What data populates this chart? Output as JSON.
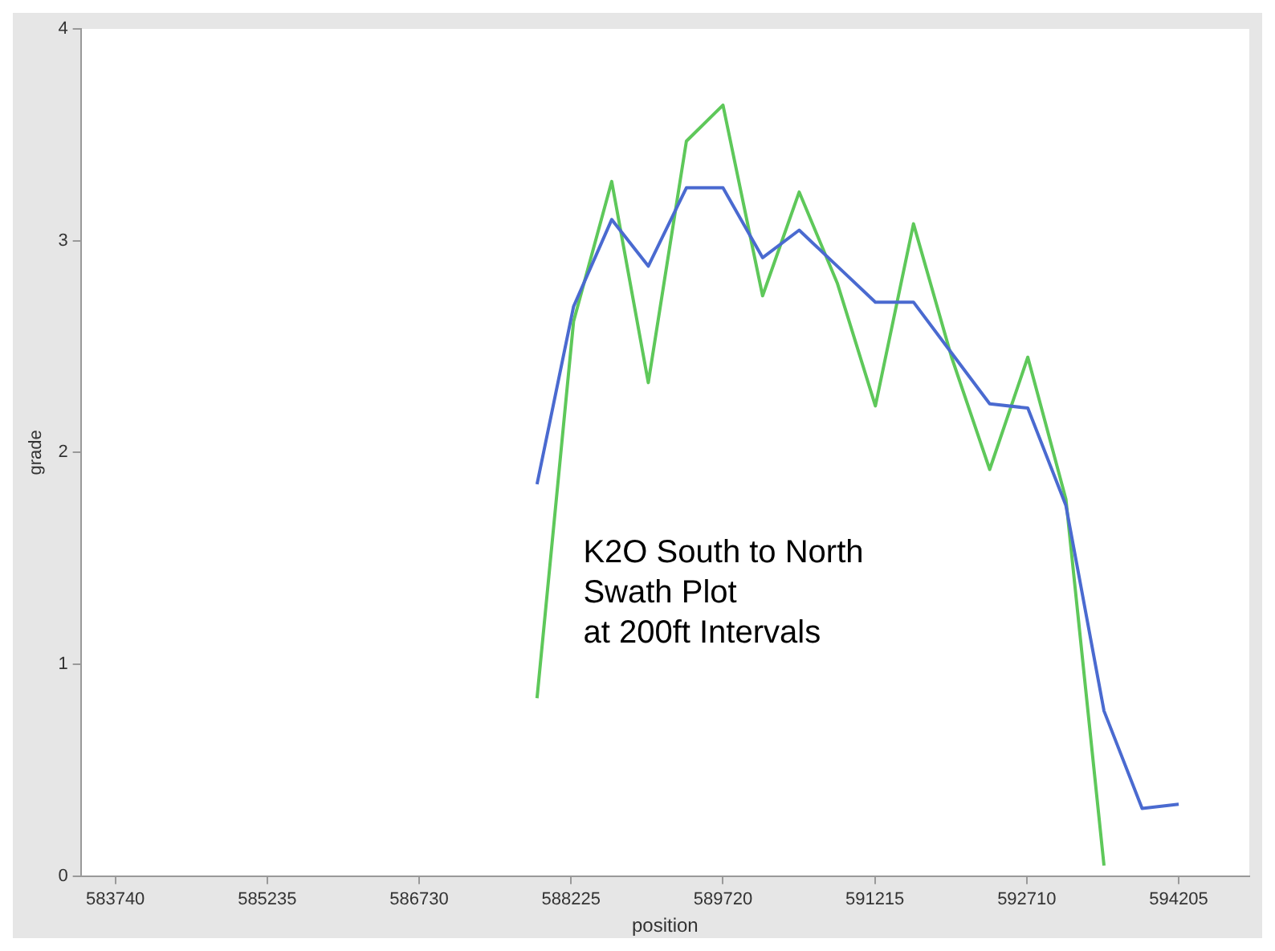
{
  "chart_data": {
    "type": "line",
    "xlabel": "position",
    "ylabel": "grade",
    "annotations": [
      "K2O South to North\nSwath Plot\nat 200ft Intervals"
    ],
    "xlim": [
      583400,
      594900
    ],
    "xticks": [
      583740,
      585235,
      586730,
      588225,
      589720,
      591215,
      592710,
      594205
    ],
    "ylim": [
      0,
      4
    ],
    "yticks": [
      0,
      1,
      2,
      3,
      4
    ],
    "grid": false,
    "legend": false,
    "marker": "none",
    "line_style": "solid",
    "x": [
      587890,
      588250,
      588625,
      588985,
      589360,
      589720,
      590110,
      590470,
      590845,
      591220,
      591595,
      591970,
      592345,
      592720,
      593095,
      593470,
      593845,
      594205
    ],
    "series": [
      {
        "color": "#4a6ad0",
        "values": [
          1.85,
          2.69,
          3.1,
          2.88,
          3.25,
          3.25,
          2.92,
          3.05,
          2.88,
          2.71,
          2.71,
          2.47,
          2.23,
          2.21,
          1.75,
          0.78,
          0.32,
          0.34
        ]
      },
      {
        "color": "#5ec85a",
        "values": [
          0.84,
          2.62,
          3.28,
          2.33,
          3.47,
          3.64,
          2.74,
          3.23,
          2.8,
          2.22,
          3.08,
          2.45,
          1.92,
          2.45,
          1.78,
          0.05,
          null,
          null
        ]
      }
    ]
  }
}
